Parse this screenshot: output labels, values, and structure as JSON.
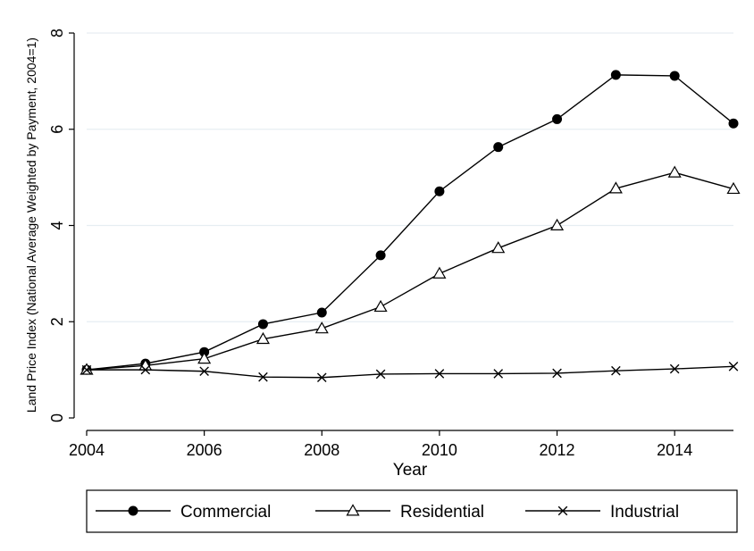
{
  "chart_data": {
    "type": "line",
    "title": "",
    "xlabel": "Year",
    "ylabel": "Land Price Index (National Average Weighted by Payment, 2004=1)",
    "xlim": [
      2004,
      2015
    ],
    "ylim": [
      0,
      8
    ],
    "x_ticks": [
      "2004",
      "2006",
      "2008",
      "2010",
      "2012",
      "2014"
    ],
    "y_ticks": [
      "0",
      "2",
      "4",
      "6",
      "8"
    ],
    "grid": "horizontal",
    "legend_position": "bottom",
    "x": [
      2004,
      2005,
      2006,
      2007,
      2008,
      2009,
      2010,
      2011,
      2012,
      2013,
      2014,
      2015
    ],
    "series": [
      {
        "name": "Commercial",
        "marker": "filled-circle",
        "color": "#000000",
        "values": [
          1.0,
          1.13,
          1.37,
          1.95,
          2.19,
          3.38,
          4.71,
          5.63,
          6.21,
          7.13,
          7.11,
          6.12
        ]
      },
      {
        "name": "Residential",
        "marker": "hollow-triangle",
        "color": "#000000",
        "values": [
          1.0,
          1.09,
          1.23,
          1.64,
          1.86,
          2.31,
          3.0,
          3.53,
          4.0,
          4.77,
          5.1,
          4.76
        ]
      },
      {
        "name": "Industrial",
        "marker": "x",
        "color": "#000000",
        "values": [
          1.0,
          1.0,
          0.97,
          0.85,
          0.84,
          0.91,
          0.92,
          0.92,
          0.93,
          0.98,
          1.02,
          1.07
        ]
      }
    ]
  }
}
